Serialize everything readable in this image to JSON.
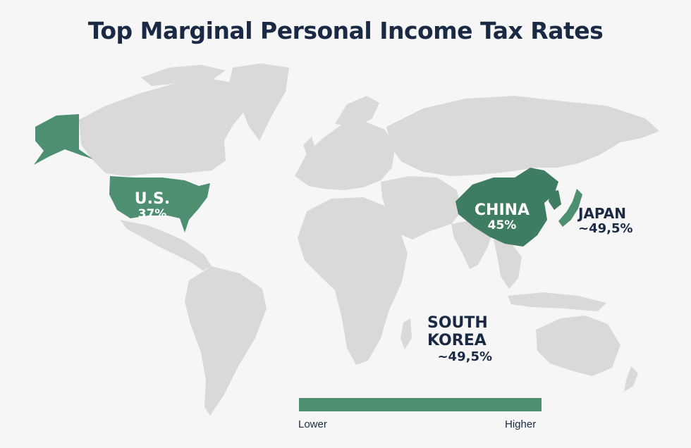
{
  "title": "Top Marginal Personal Income Tax Rates",
  "colors": {
    "background": "#f6f6f6",
    "land": "#d9d9d9",
    "highlight": "#4e8f72",
    "highlight_dark": "#3f7d63",
    "text": "#1b2a44"
  },
  "countries": [
    {
      "name": "U.S.",
      "rate": "37%",
      "value": 37
    },
    {
      "name": "CHINA",
      "rate": "45%",
      "value": 45
    },
    {
      "name": "JAPAN",
      "rate": "~49,5%",
      "value": 49.5
    },
    {
      "name_line1": "SOUTH",
      "name_line2": "KOREA",
      "rate": "~49,5%",
      "value": 49.5
    }
  ],
  "legend": {
    "low": "Lower",
    "high": "Higher"
  }
}
